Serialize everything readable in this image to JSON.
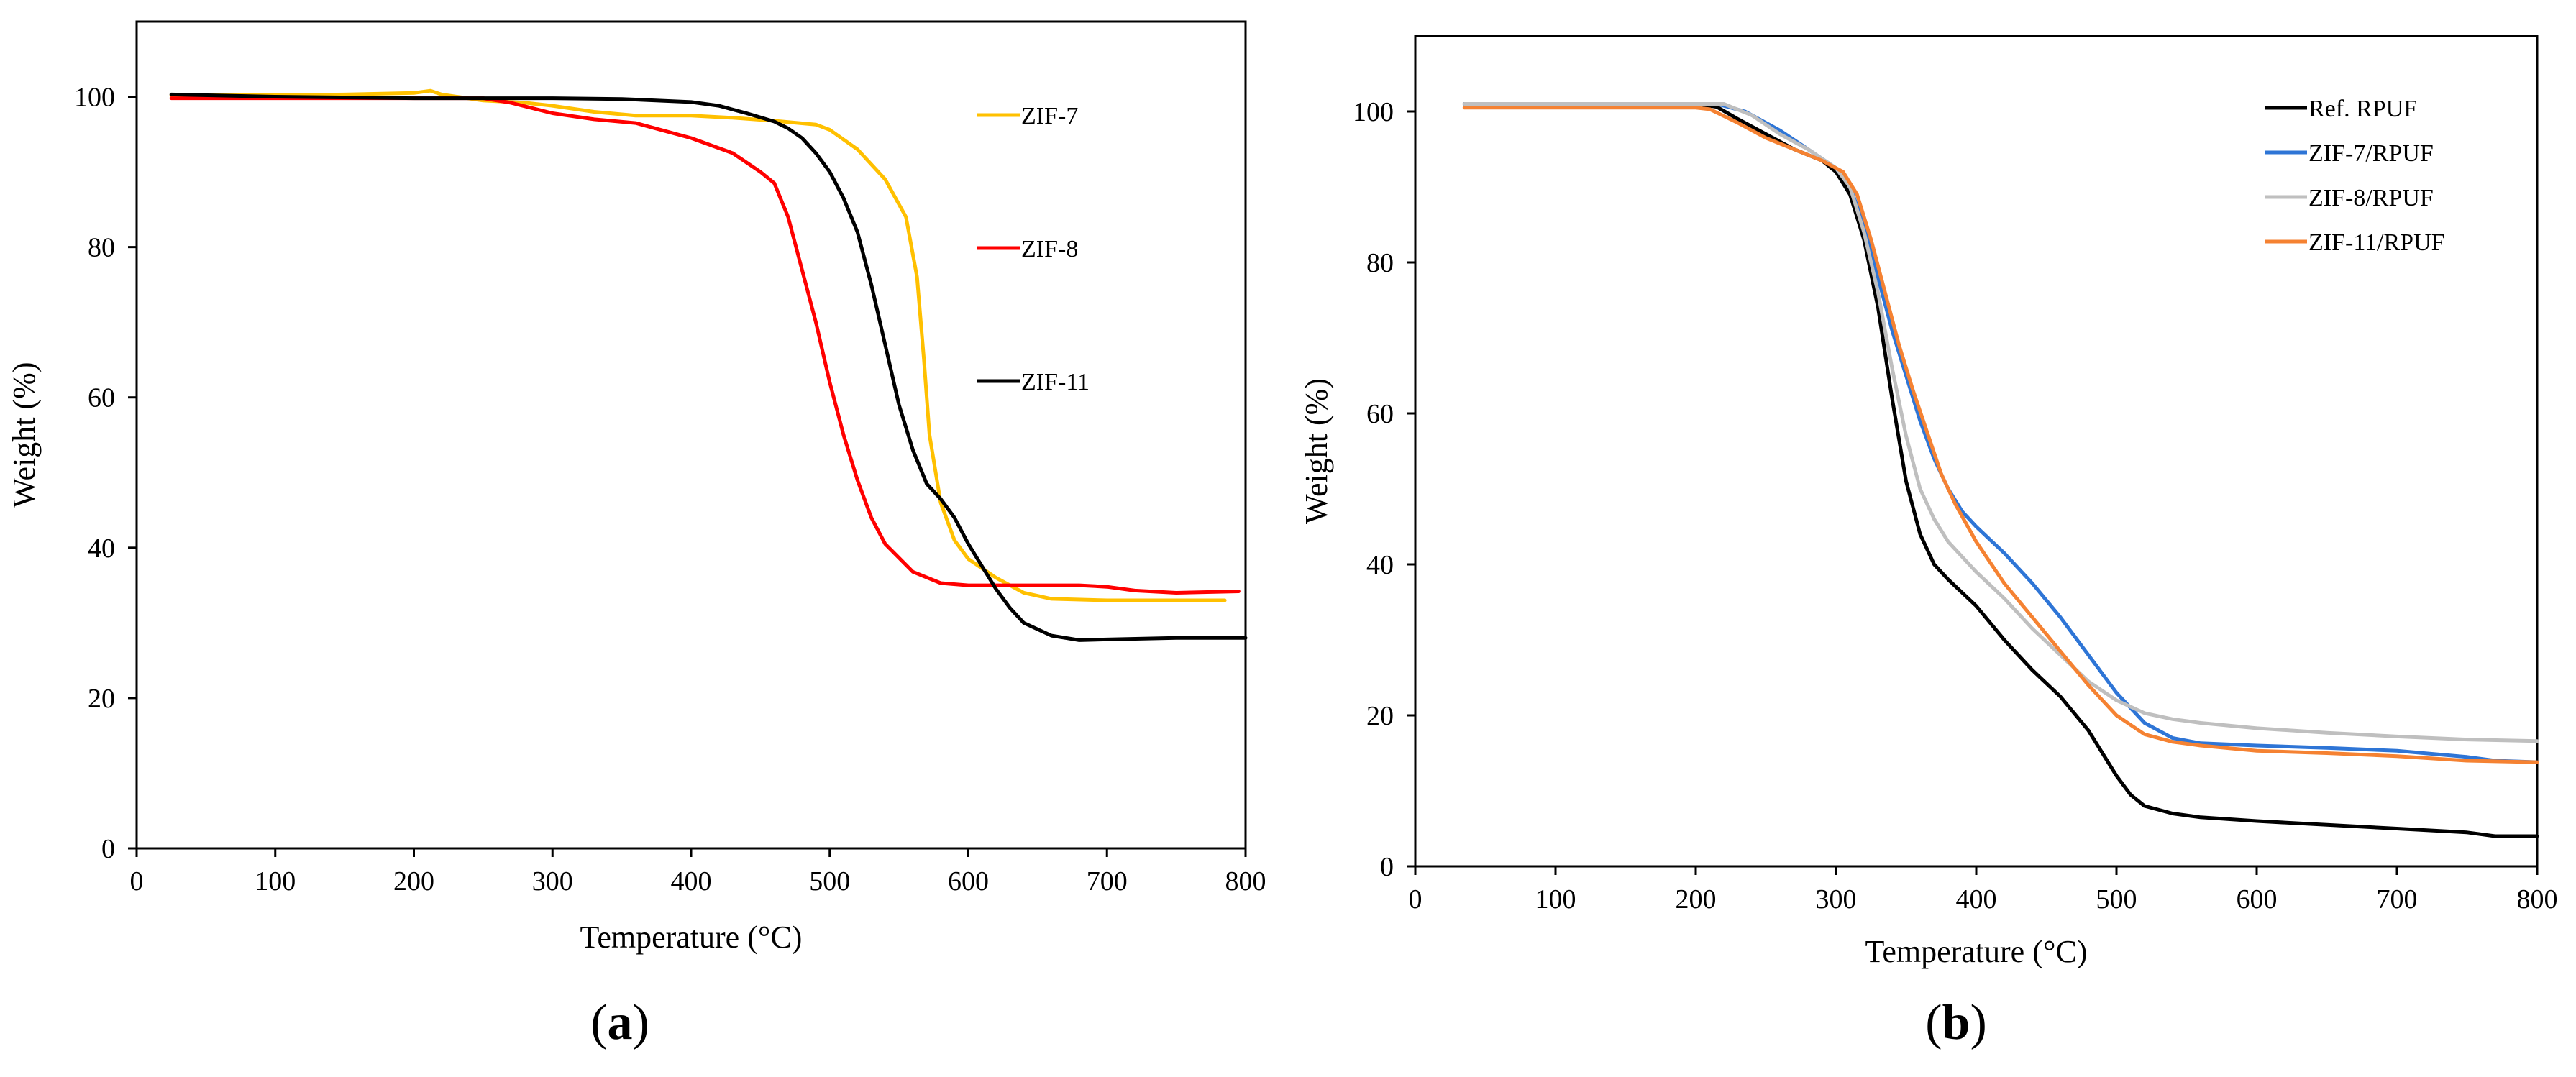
{
  "chart_data": [
    {
      "type": "line",
      "panel_label": "a",
      "xlabel": "Temperature (°C)",
      "ylabel": "Weight (%)",
      "xlim": [
        0,
        800
      ],
      "ylim": [
        0,
        110
      ],
      "xticks": [
        0,
        100,
        200,
        300,
        400,
        500,
        600,
        700,
        800
      ],
      "yticks": [
        0,
        20,
        40,
        60,
        80,
        100
      ],
      "grid": false,
      "legend_position": "top-right",
      "series": [
        {
          "name": "ZIF-7",
          "color": "#FFC000",
          "points": [
            [
              25,
              100.2
            ],
            [
              100,
              100.2
            ],
            [
              150,
              100.3
            ],
            [
              200,
              100.5
            ],
            [
              212,
              100.8
            ],
            [
              220,
              100.3
            ],
            [
              250,
              99.5
            ],
            [
              280,
              99.2
            ],
            [
              300,
              98.8
            ],
            [
              330,
              98
            ],
            [
              360,
              97.5
            ],
            [
              400,
              97.5
            ],
            [
              430,
              97.2
            ],
            [
              460,
              96.8
            ],
            [
              490,
              96.3
            ],
            [
              500,
              95.6
            ],
            [
              520,
              93
            ],
            [
              540,
              89
            ],
            [
              555,
              84
            ],
            [
              563,
              76
            ],
            [
              568,
              65
            ],
            [
              572,
              55
            ],
            [
              580,
              46
            ],
            [
              590,
              41
            ],
            [
              600,
              38.5
            ],
            [
              620,
              36
            ],
            [
              640,
              34
            ],
            [
              660,
              33.2
            ],
            [
              700,
              33
            ],
            [
              750,
              33
            ],
            [
              785,
              33
            ]
          ]
        },
        {
          "name": "ZIF-8",
          "color": "#FF0000",
          "points": [
            [
              25,
              99.8
            ],
            [
              100,
              99.8
            ],
            [
              200,
              99.8
            ],
            [
              250,
              99.8
            ],
            [
              270,
              99.2
            ],
            [
              300,
              97.8
            ],
            [
              330,
              97
            ],
            [
              360,
              96.5
            ],
            [
              400,
              94.5
            ],
            [
              430,
              92.5
            ],
            [
              450,
              90
            ],
            [
              460,
              88.5
            ],
            [
              470,
              84
            ],
            [
              480,
              77
            ],
            [
              490,
              70
            ],
            [
              500,
              62
            ],
            [
              510,
              55
            ],
            [
              520,
              49
            ],
            [
              530,
              44
            ],
            [
              540,
              40.5
            ],
            [
              560,
              36.8
            ],
            [
              580,
              35.3
            ],
            [
              600,
              35
            ],
            [
              650,
              35
            ],
            [
              680,
              35
            ],
            [
              700,
              34.8
            ],
            [
              720,
              34.3
            ],
            [
              750,
              34
            ],
            [
              795,
              34.2
            ]
          ]
        },
        {
          "name": "ZIF-11",
          "color": "#000000",
          "points": [
            [
              25,
              100.3
            ],
            [
              100,
              100
            ],
            [
              200,
              99.8
            ],
            [
              300,
              99.8
            ],
            [
              350,
              99.7
            ],
            [
              400,
              99.3
            ],
            [
              420,
              98.8
            ],
            [
              440,
              97.8
            ],
            [
              460,
              96.7
            ],
            [
              470,
              95.8
            ],
            [
              480,
              94.5
            ],
            [
              490,
              92.5
            ],
            [
              500,
              90
            ],
            [
              510,
              86.5
            ],
            [
              520,
              82
            ],
            [
              530,
              75
            ],
            [
              540,
              67
            ],
            [
              550,
              59
            ],
            [
              560,
              53
            ],
            [
              570,
              48.5
            ],
            [
              580,
              46.5
            ],
            [
              590,
              44
            ],
            [
              600,
              40.5
            ],
            [
              610,
              37.5
            ],
            [
              620,
              34.5
            ],
            [
              630,
              32
            ],
            [
              640,
              30
            ],
            [
              660,
              28.3
            ],
            [
              680,
              27.7
            ],
            [
              700,
              27.8
            ],
            [
              750,
              28
            ],
            [
              800,
              28
            ]
          ]
        }
      ]
    },
    {
      "type": "line",
      "panel_label": "b",
      "xlabel": "Temperature (°C)",
      "ylabel": "Weight (%)",
      "xlim": [
        0,
        800
      ],
      "ylim": [
        0,
        110
      ],
      "xticks": [
        0,
        100,
        200,
        300,
        400,
        500,
        600,
        700,
        800
      ],
      "yticks": [
        0,
        20,
        40,
        60,
        80,
        100
      ],
      "grid": false,
      "legend_position": "top-right",
      "series": [
        {
          "name": "Ref. RPUF",
          "color": "#000000",
          "points": [
            [
              35,
              101
            ],
            [
              100,
              101
            ],
            [
              200,
              101
            ],
            [
              215,
              100.6
            ],
            [
              230,
              99
            ],
            [
              250,
              97
            ],
            [
              270,
              95
            ],
            [
              290,
              93.5
            ],
            [
              300,
              92
            ],
            [
              310,
              89
            ],
            [
              320,
              83
            ],
            [
              330,
              74
            ],
            [
              340,
              62
            ],
            [
              350,
              51
            ],
            [
              360,
              44
            ],
            [
              370,
              40
            ],
            [
              380,
              38
            ],
            [
              400,
              34.5
            ],
            [
              420,
              30
            ],
            [
              440,
              26
            ],
            [
              460,
              22.5
            ],
            [
              480,
              18
            ],
            [
              490,
              15
            ],
            [
              500,
              12
            ],
            [
              510,
              9.5
            ],
            [
              520,
              8
            ],
            [
              540,
              7
            ],
            [
              560,
              6.5
            ],
            [
              600,
              6
            ],
            [
              650,
              5.5
            ],
            [
              700,
              5
            ],
            [
              750,
              4.5
            ],
            [
              770,
              4
            ],
            [
              800,
              4
            ]
          ]
        },
        {
          "name": "ZIF-7/RPUF",
          "color": "#2E75D6",
          "points": [
            [
              35,
              101
            ],
            [
              100,
              101
            ],
            [
              200,
              101
            ],
            [
              215,
              101
            ],
            [
              235,
              100
            ],
            [
              260,
              97.5
            ],
            [
              280,
              95
            ],
            [
              300,
              92.5
            ],
            [
              310,
              90
            ],
            [
              320,
              85
            ],
            [
              330,
              78
            ],
            [
              340,
              71
            ],
            [
              350,
              65
            ],
            [
              360,
              59
            ],
            [
              370,
              54
            ],
            [
              380,
              50
            ],
            [
              390,
              47
            ],
            [
              400,
              45
            ],
            [
              420,
              41.5
            ],
            [
              440,
              37.5
            ],
            [
              460,
              33
            ],
            [
              480,
              28
            ],
            [
              500,
              23
            ],
            [
              520,
              19
            ],
            [
              540,
              17
            ],
            [
              560,
              16.3
            ],
            [
              600,
              16
            ],
            [
              650,
              15.7
            ],
            [
              700,
              15.3
            ],
            [
              750,
              14.5
            ],
            [
              770,
              14
            ],
            [
              800,
              13.8
            ]
          ]
        },
        {
          "name": "ZIF-8/RPUF",
          "color": "#BFBFBF",
          "points": [
            [
              35,
              101
            ],
            [
              100,
              101
            ],
            [
              200,
              101
            ],
            [
              220,
              101
            ],
            [
              240,
              99.5
            ],
            [
              260,
              97
            ],
            [
              280,
              95
            ],
            [
              300,
              92.5
            ],
            [
              310,
              90
            ],
            [
              320,
              84
            ],
            [
              330,
              76
            ],
            [
              340,
              66
            ],
            [
              350,
              57
            ],
            [
              360,
              50
            ],
            [
              370,
              46
            ],
            [
              380,
              43
            ],
            [
              400,
              39
            ],
            [
              420,
              35.5
            ],
            [
              440,
              31.5
            ],
            [
              460,
              28
            ],
            [
              480,
              24.5
            ],
            [
              500,
              22
            ],
            [
              520,
              20.3
            ],
            [
              540,
              19.5
            ],
            [
              560,
              19
            ],
            [
              600,
              18.3
            ],
            [
              650,
              17.7
            ],
            [
              700,
              17.2
            ],
            [
              750,
              16.8
            ],
            [
              800,
              16.6
            ]
          ]
        },
        {
          "name": "ZIF-11/RPUF",
          "color": "#F58232",
          "points": [
            [
              35,
              100.5
            ],
            [
              100,
              100.5
            ],
            [
              200,
              100.5
            ],
            [
              210,
              100.3
            ],
            [
              230,
              98.5
            ],
            [
              250,
              96.5
            ],
            [
              270,
              95
            ],
            [
              290,
              93.5
            ],
            [
              305,
              92
            ],
            [
              315,
              89
            ],
            [
              325,
              83
            ],
            [
              335,
              76
            ],
            [
              345,
              69
            ],
            [
              355,
              63
            ],
            [
              365,
              57.5
            ],
            [
              375,
              52
            ],
            [
              385,
              48
            ],
            [
              400,
              43
            ],
            [
              420,
              37.5
            ],
            [
              440,
              33
            ],
            [
              460,
              28.5
            ],
            [
              480,
              24
            ],
            [
              500,
              20
            ],
            [
              520,
              17.5
            ],
            [
              540,
              16.5
            ],
            [
              560,
              16
            ],
            [
              600,
              15.3
            ],
            [
              650,
              15
            ],
            [
              700,
              14.6
            ],
            [
              750,
              14
            ],
            [
              800,
              13.8
            ]
          ]
        }
      ]
    }
  ]
}
